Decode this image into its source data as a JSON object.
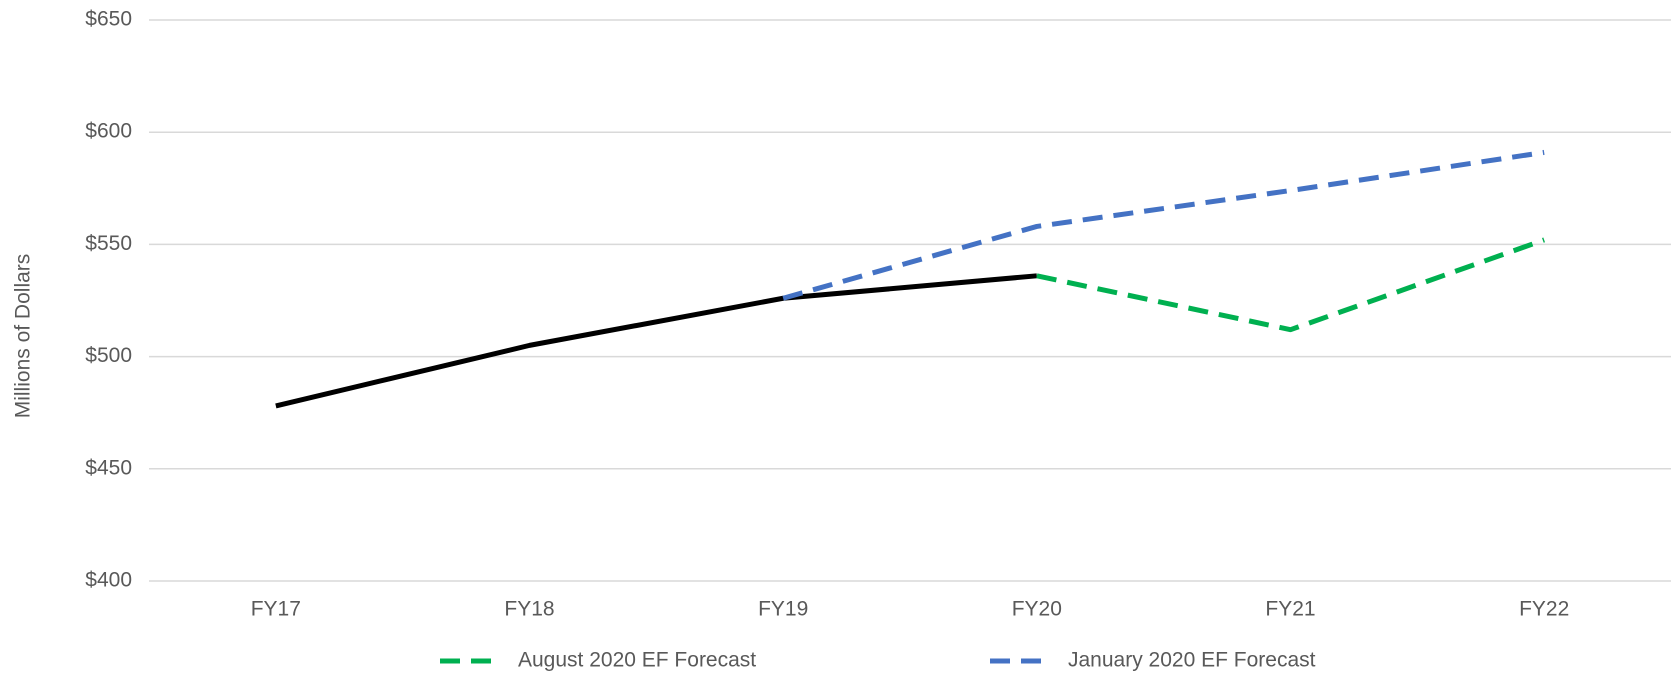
{
  "chart_data": {
    "type": "line",
    "y_label": "Millions of Dollars",
    "categories": [
      "FY17",
      "FY18",
      "FY19",
      "FY20",
      "FY21",
      "FY22"
    ],
    "series": [
      {
        "color": "#000000",
        "values": [
          478,
          505,
          526,
          536,
          null,
          null
        ]
      },
      {
        "name": "August 2020 EF Forecast",
        "color": "#00b050",
        "dashed": true,
        "values": [
          null,
          null,
          null,
          536,
          512,
          552
        ]
      },
      {
        "name": "January 2020 EF Forecast",
        "color": "#4472c4",
        "dashed": true,
        "values": [
          null,
          null,
          526,
          558,
          574,
          591
        ]
      }
    ],
    "ylim": [
      400,
      650
    ],
    "yticks": [
      {
        "value": 400,
        "label": "$400"
      },
      {
        "value": 450,
        "label": "$450"
      },
      {
        "value": 500,
        "label": "$500"
      },
      {
        "value": 550,
        "label": "$550"
      },
      {
        "value": 600,
        "label": "$600"
      },
      {
        "value": 650,
        "label": "$650"
      }
    ],
    "grid": true,
    "legend": "bottom"
  }
}
